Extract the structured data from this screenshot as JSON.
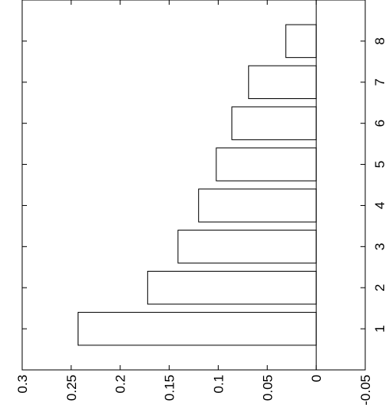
{
  "chart_data": {
    "type": "bar",
    "orientation": "horizontal",
    "rotated": true,
    "categories": [
      "1",
      "2",
      "3",
      "4",
      "5",
      "6",
      "7",
      "8"
    ],
    "values": [
      0.243,
      0.172,
      0.141,
      0.12,
      0.102,
      0.086,
      0.069,
      0.031
    ],
    "value_axis": {
      "range": [
        -0.05,
        0.3
      ],
      "ticks": [
        0.3,
        0.25,
        0.2,
        0.15,
        0.1,
        0.05,
        0,
        -0.05
      ],
      "tick_labels": [
        "0.3",
        "0.25",
        "0.2",
        "0.15",
        "0.1",
        "0.05",
        "0",
        "-0.05"
      ]
    },
    "category_axis": {
      "range": [
        0,
        9
      ],
      "ticks": [
        1,
        2,
        3,
        4,
        5,
        6,
        7,
        8
      ],
      "tick_labels": [
        "1",
        "2",
        "3",
        "4",
        "5",
        "6",
        "7",
        "8"
      ]
    },
    "zero_line": true,
    "grid": false,
    "legend": "none",
    "bar_fill": "#ffffff",
    "bar_stroke": "#000000",
    "title": "",
    "xlabel": "",
    "ylabel": ""
  }
}
